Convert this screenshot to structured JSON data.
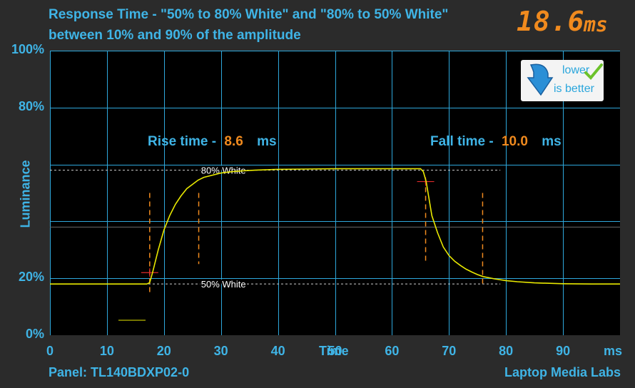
{
  "header": {
    "title_line1": "Response Time - \"50% to 80% White\" and \"80% to 50% White\"",
    "title_line2": "between 10% and 90% of the amplitude",
    "result_value": "18.6",
    "result_unit": "ms"
  },
  "badge": {
    "line1": "lower",
    "line2": "is better",
    "icons": [
      "arrow-down-icon",
      "checkmark-icon"
    ]
  },
  "footer": {
    "panel": "Panel: TL140BDXP02-0",
    "brand": "Laptop Media Labs"
  },
  "chart_data": {
    "type": "line",
    "title": "",
    "xlabel": "Time",
    "x_unit_label": "ms",
    "ylabel": "Luminance",
    "xlim": [
      0,
      100
    ],
    "ylim": [
      0,
      100
    ],
    "grid": true,
    "x_ticks": [
      "0",
      "10",
      "20",
      "30",
      "40",
      "50",
      "60",
      "70",
      "80",
      "90"
    ],
    "y_ticks": [
      {
        "value": 0,
        "label": "0%"
      },
      {
        "value": 20,
        "label": "20%"
      },
      {
        "value": 80,
        "label": "80%"
      },
      {
        "value": 100,
        "label": "100%"
      }
    ],
    "reference_lines": [
      {
        "label": "80% White",
        "y": 58
      },
      {
        "label": "50% White",
        "y": 18
      }
    ],
    "rise": {
      "label": "Rise time -",
      "value": "8.6",
      "unit": "ms",
      "start_x": 17.5,
      "end_x": 26.1
    },
    "fall": {
      "label": "Fall time -",
      "value": "10.0",
      "unit": "ms",
      "start_x": 65.9,
      "end_x": 75.9
    },
    "series": [
      {
        "color": "#e8e800",
        "x": [
          0,
          5,
          10,
          15,
          17,
          17.5,
          18,
          19,
          20,
          21,
          22,
          23,
          24,
          25,
          26,
          27,
          28,
          30,
          32,
          34,
          36,
          40,
          45,
          50,
          55,
          60,
          63,
          65,
          65.5,
          66,
          66.5,
          67,
          68,
          69,
          70,
          71,
          72,
          73,
          74,
          75,
          76,
          78,
          80,
          82,
          85,
          90,
          95,
          100
        ],
        "y": [
          18,
          18,
          18,
          18,
          18,
          18.5,
          22,
          30,
          37,
          42,
          46,
          49,
          51.5,
          53,
          54.5,
          55.5,
          56,
          57,
          57.5,
          57.8,
          58,
          58.3,
          58.4,
          58.5,
          58.5,
          58.5,
          58.5,
          58.5,
          57.5,
          54,
          48,
          42,
          36,
          31,
          28,
          26,
          24.5,
          23.2,
          22.2,
          21.3,
          20.6,
          19.8,
          19.2,
          18.8,
          18.4,
          18.1,
          18,
          18
        ]
      }
    ]
  }
}
